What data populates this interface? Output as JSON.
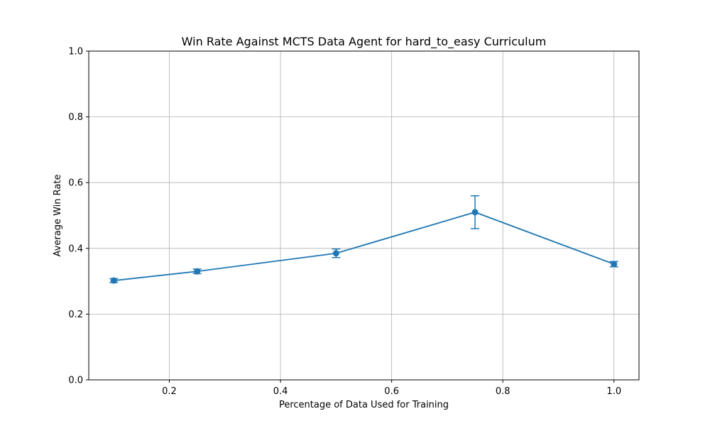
{
  "chart_data": {
    "type": "line",
    "title": "Win Rate Against MCTS Data Agent for hard_to_easy Curriculum",
    "xlabel": "Percentage of Data Used for Training",
    "ylabel": "Average Win Rate",
    "xlim": [
      0.055,
      1.045
    ],
    "ylim": [
      0.0,
      1.0
    ],
    "xticks": [
      "0.2",
      "0.4",
      "0.6",
      "0.8",
      "1.0"
    ],
    "yticks": [
      "0.0",
      "0.2",
      "0.4",
      "0.6",
      "0.8",
      "1.0"
    ],
    "grid": true,
    "color": "#1f77b4",
    "series": [
      {
        "x": [
          0.1,
          0.25,
          0.5,
          0.75,
          1.0
        ],
        "y": [
          0.302,
          0.33,
          0.385,
          0.51,
          0.352
        ],
        "error": [
          0.006,
          0.007,
          0.013,
          0.05,
          0.008
        ]
      }
    ]
  }
}
